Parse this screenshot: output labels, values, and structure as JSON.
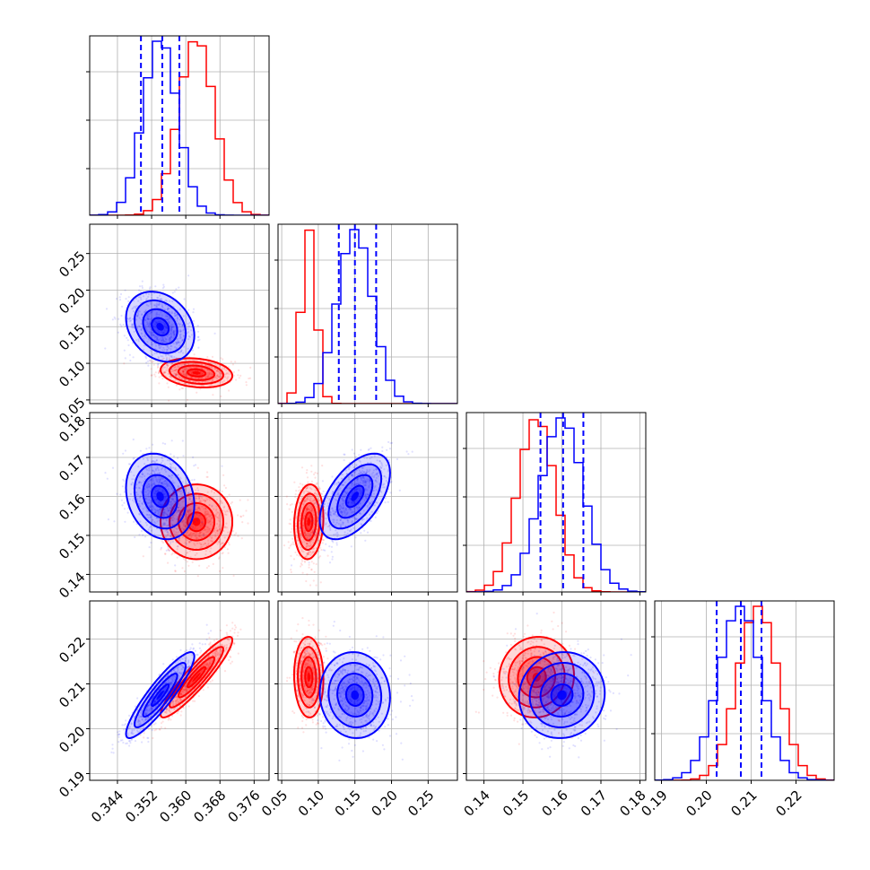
{
  "chart_data": {
    "type": "corner",
    "grid": true,
    "colors": {
      "blue": "#0000ff",
      "red": "#ff0000",
      "gridline": "#b0b0b0"
    },
    "series": [
      {
        "color": "blue",
        "mean": [
          0.354,
          0.15,
          0.16,
          0.2075
        ],
        "sd": [
          0.004,
          0.024,
          0.0055,
          0.0048
        ],
        "corr": {
          "1-0": -0.25,
          "2-0": -0.2,
          "2-1": 0.55,
          "3-0": 0.9,
          "3-1": -0.05,
          "3-2": 0.05
        },
        "quantiles": [
          [
            0.3495,
            0.3545,
            0.3585
          ],
          [
            0.128,
            0.15,
            0.179
          ],
          [
            0.1545,
            0.1603,
            0.1655
          ],
          [
            0.2023,
            0.2077,
            0.2123
          ]
        ]
      },
      {
        "color": "red",
        "mean": [
          0.3625,
          0.087,
          0.1535,
          0.2115
        ],
        "sd": [
          0.0042,
          0.01,
          0.0048,
          0.0045
        ],
        "corr": {
          "1-0": -0.2,
          "2-0": 0.0,
          "2-1": 0.1,
          "3-0": 0.92,
          "3-1": -0.05,
          "3-2": 0.05
        }
      }
    ],
    "dims": [
      {
        "range": [
          0.3375,
          0.3795
        ],
        "ticks": [
          "0.344",
          "0.352",
          "0.360",
          "0.368",
          "0.376"
        ],
        "tickvals": [
          0.344,
          0.352,
          0.36,
          0.368,
          0.376
        ]
      },
      {
        "range": [
          0.045,
          0.29
        ],
        "ticks": [
          "0.05",
          "0.10",
          "0.15",
          "0.20",
          "0.25"
        ],
        "tickvals": [
          0.05,
          0.1,
          0.15,
          0.2,
          0.25
        ]
      },
      {
        "range": [
          0.1355,
          0.1815
        ],
        "ticks": [
          "0.14",
          "0.15",
          "0.16",
          "0.17",
          "0.18"
        ],
        "tickvals": [
          0.14,
          0.15,
          0.16,
          0.17,
          0.18
        ]
      },
      {
        "range": [
          0.1885,
          0.2285
        ],
        "ticks": [
          "0.19",
          "0.20",
          "0.21",
          "0.22"
        ],
        "tickvals": [
          0.19,
          0.2,
          0.21,
          0.22
        ]
      }
    ]
  }
}
